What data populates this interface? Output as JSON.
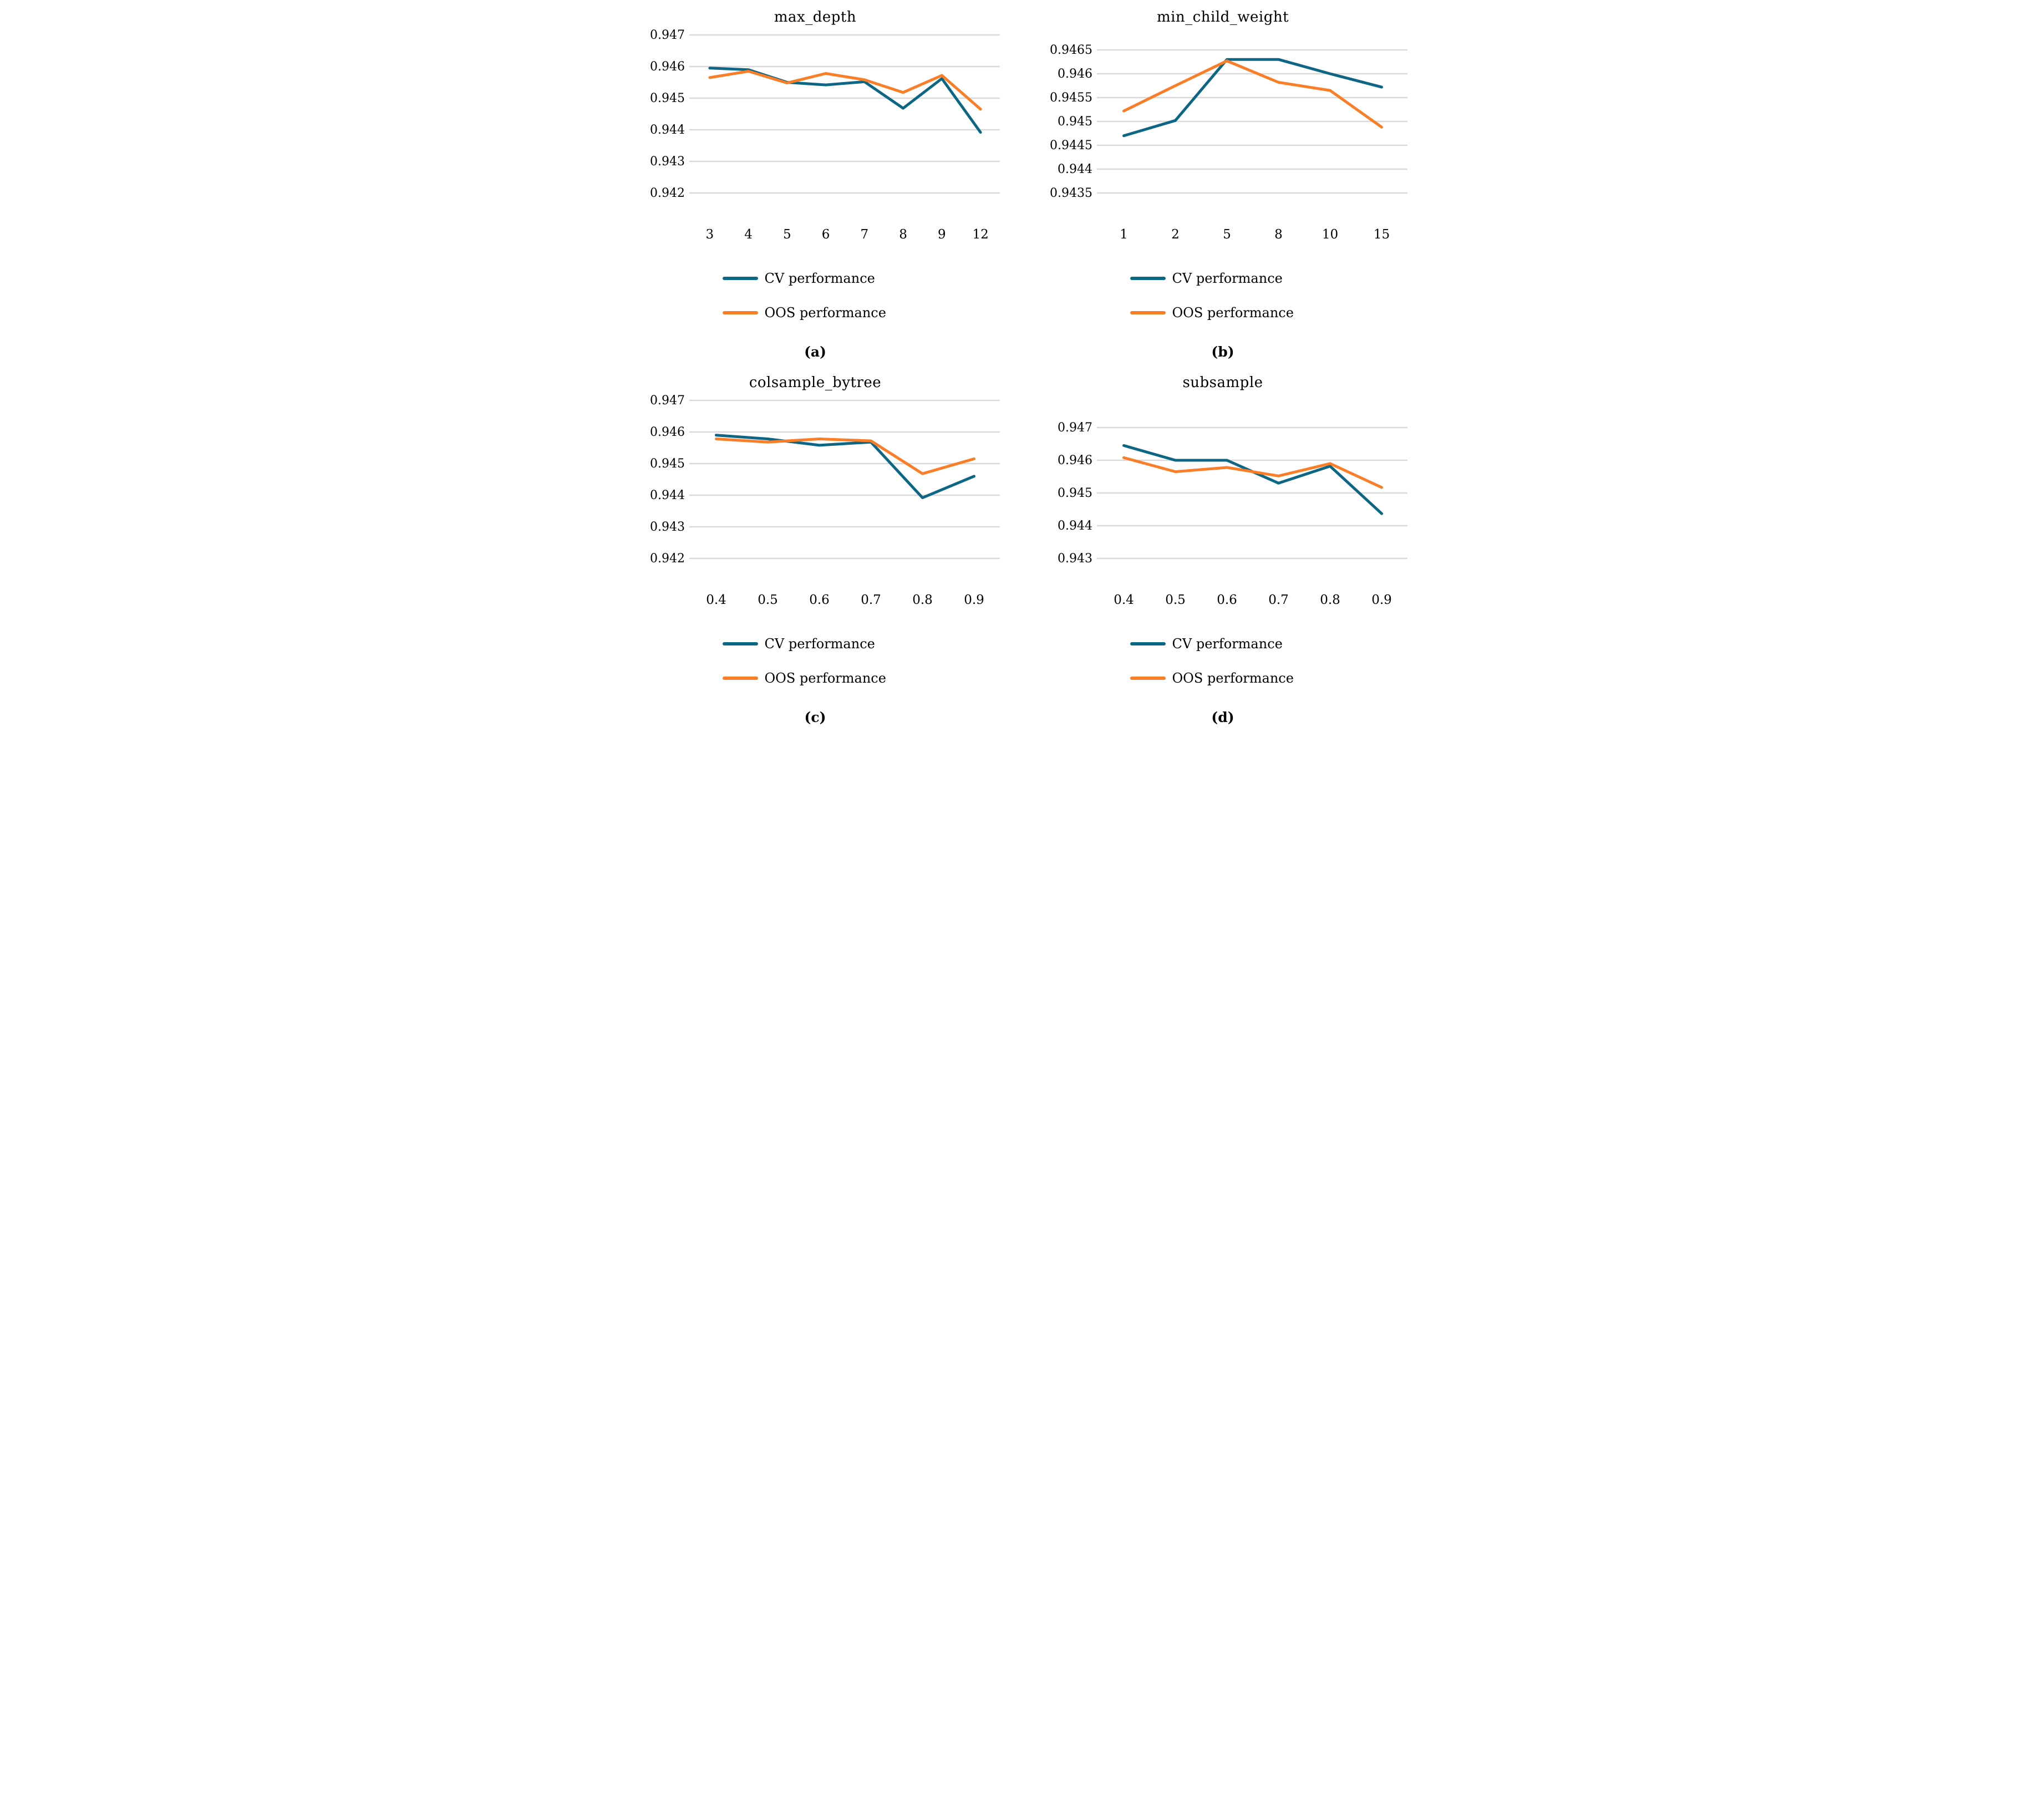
{
  "figure_legend": {
    "cv_label": "CV performance",
    "oos_label": "OOS performance"
  },
  "colors": {
    "cv": "#0E6685",
    "oos": "#FA7D28",
    "gridline": "#D9D9D9",
    "text": "#000000"
  },
  "chart_data": [
    {
      "type": "line",
      "title": "max_depth",
      "sublabel": "(a)",
      "categories": [
        "3",
        "4",
        "5",
        "6",
        "7",
        "8",
        "9",
        "12"
      ],
      "ytick_labels": [
        "0.947",
        "0.946",
        "0.945",
        "0.944",
        "0.943",
        "0.942"
      ],
      "ylim": [
        0.942,
        0.947
      ],
      "grid": true,
      "legend_position": "bottom",
      "series": [
        {
          "name": "CV performance",
          "color": "#0E6685",
          "values": [
            0.94595,
            0.9459,
            0.9455,
            0.94542,
            0.94552,
            0.94468,
            0.94562,
            0.94392
          ]
        },
        {
          "name": "OOS performance",
          "color": "#FA7D28",
          "values": [
            0.94565,
            0.94585,
            0.94548,
            0.94578,
            0.94558,
            0.94518,
            0.94572,
            0.94465
          ]
        }
      ]
    },
    {
      "type": "line",
      "title": "min_child_weight",
      "sublabel": "(b)",
      "categories": [
        "1",
        "2",
        "5",
        "8",
        "10",
        "15"
      ],
      "ytick_labels": [
        "0.9465",
        "0.946",
        "0.9455",
        "0.945",
        "0.9445",
        "0.944",
        "0.9435"
      ],
      "ylim": [
        0.9435,
        0.9465
      ],
      "grid": true,
      "legend_position": "bottom",
      "series": [
        {
          "name": "CV performance",
          "color": "#0E6685",
          "values": [
            0.9447,
            0.94502,
            0.9463,
            0.9463,
            0.946,
            0.94572
          ]
        },
        {
          "name": "OOS performance",
          "color": "#FA7D28",
          "values": [
            0.94522,
            0.94575,
            0.94627,
            0.94582,
            0.94565,
            0.94488
          ]
        }
      ]
    },
    {
      "type": "line",
      "title": "colsample_bytree",
      "sublabel": "(c)",
      "categories": [
        "0.4",
        "0.5",
        "0.6",
        "0.7",
        "0.8",
        "0.9"
      ],
      "ytick_labels": [
        "0.947",
        "0.946",
        "0.945",
        "0.944",
        "0.943",
        "0.942"
      ],
      "ylim": [
        0.942,
        0.947
      ],
      "grid": true,
      "legend_position": "bottom",
      "series": [
        {
          "name": "CV performance",
          "color": "#0E6685",
          "values": [
            0.9459,
            0.94578,
            0.94558,
            0.94568,
            0.94392,
            0.9446
          ]
        },
        {
          "name": "OOS performance",
          "color": "#FA7D28",
          "values": [
            0.94578,
            0.94568,
            0.94578,
            0.94572,
            0.94468,
            0.94515
          ]
        }
      ]
    },
    {
      "type": "line",
      "title": "subsample",
      "sublabel": "(d)",
      "categories": [
        "0.4",
        "0.5",
        "0.6",
        "0.7",
        "0.8",
        "0.9"
      ],
      "ytick_labels": [
        "0.947",
        "0.946",
        "0.945",
        "0.944",
        "0.943"
      ],
      "ylim": [
        0.943,
        0.947
      ],
      "grid": true,
      "legend_position": "bottom",
      "series": [
        {
          "name": "CV performance",
          "color": "#0E6685",
          "values": [
            0.94645,
            0.946,
            0.946,
            0.9453,
            0.94582,
            0.94437
          ]
        },
        {
          "name": "OOS performance",
          "color": "#FA7D28",
          "values": [
            0.94608,
            0.94565,
            0.94578,
            0.94552,
            0.9459,
            0.94517
          ]
        }
      ]
    }
  ]
}
